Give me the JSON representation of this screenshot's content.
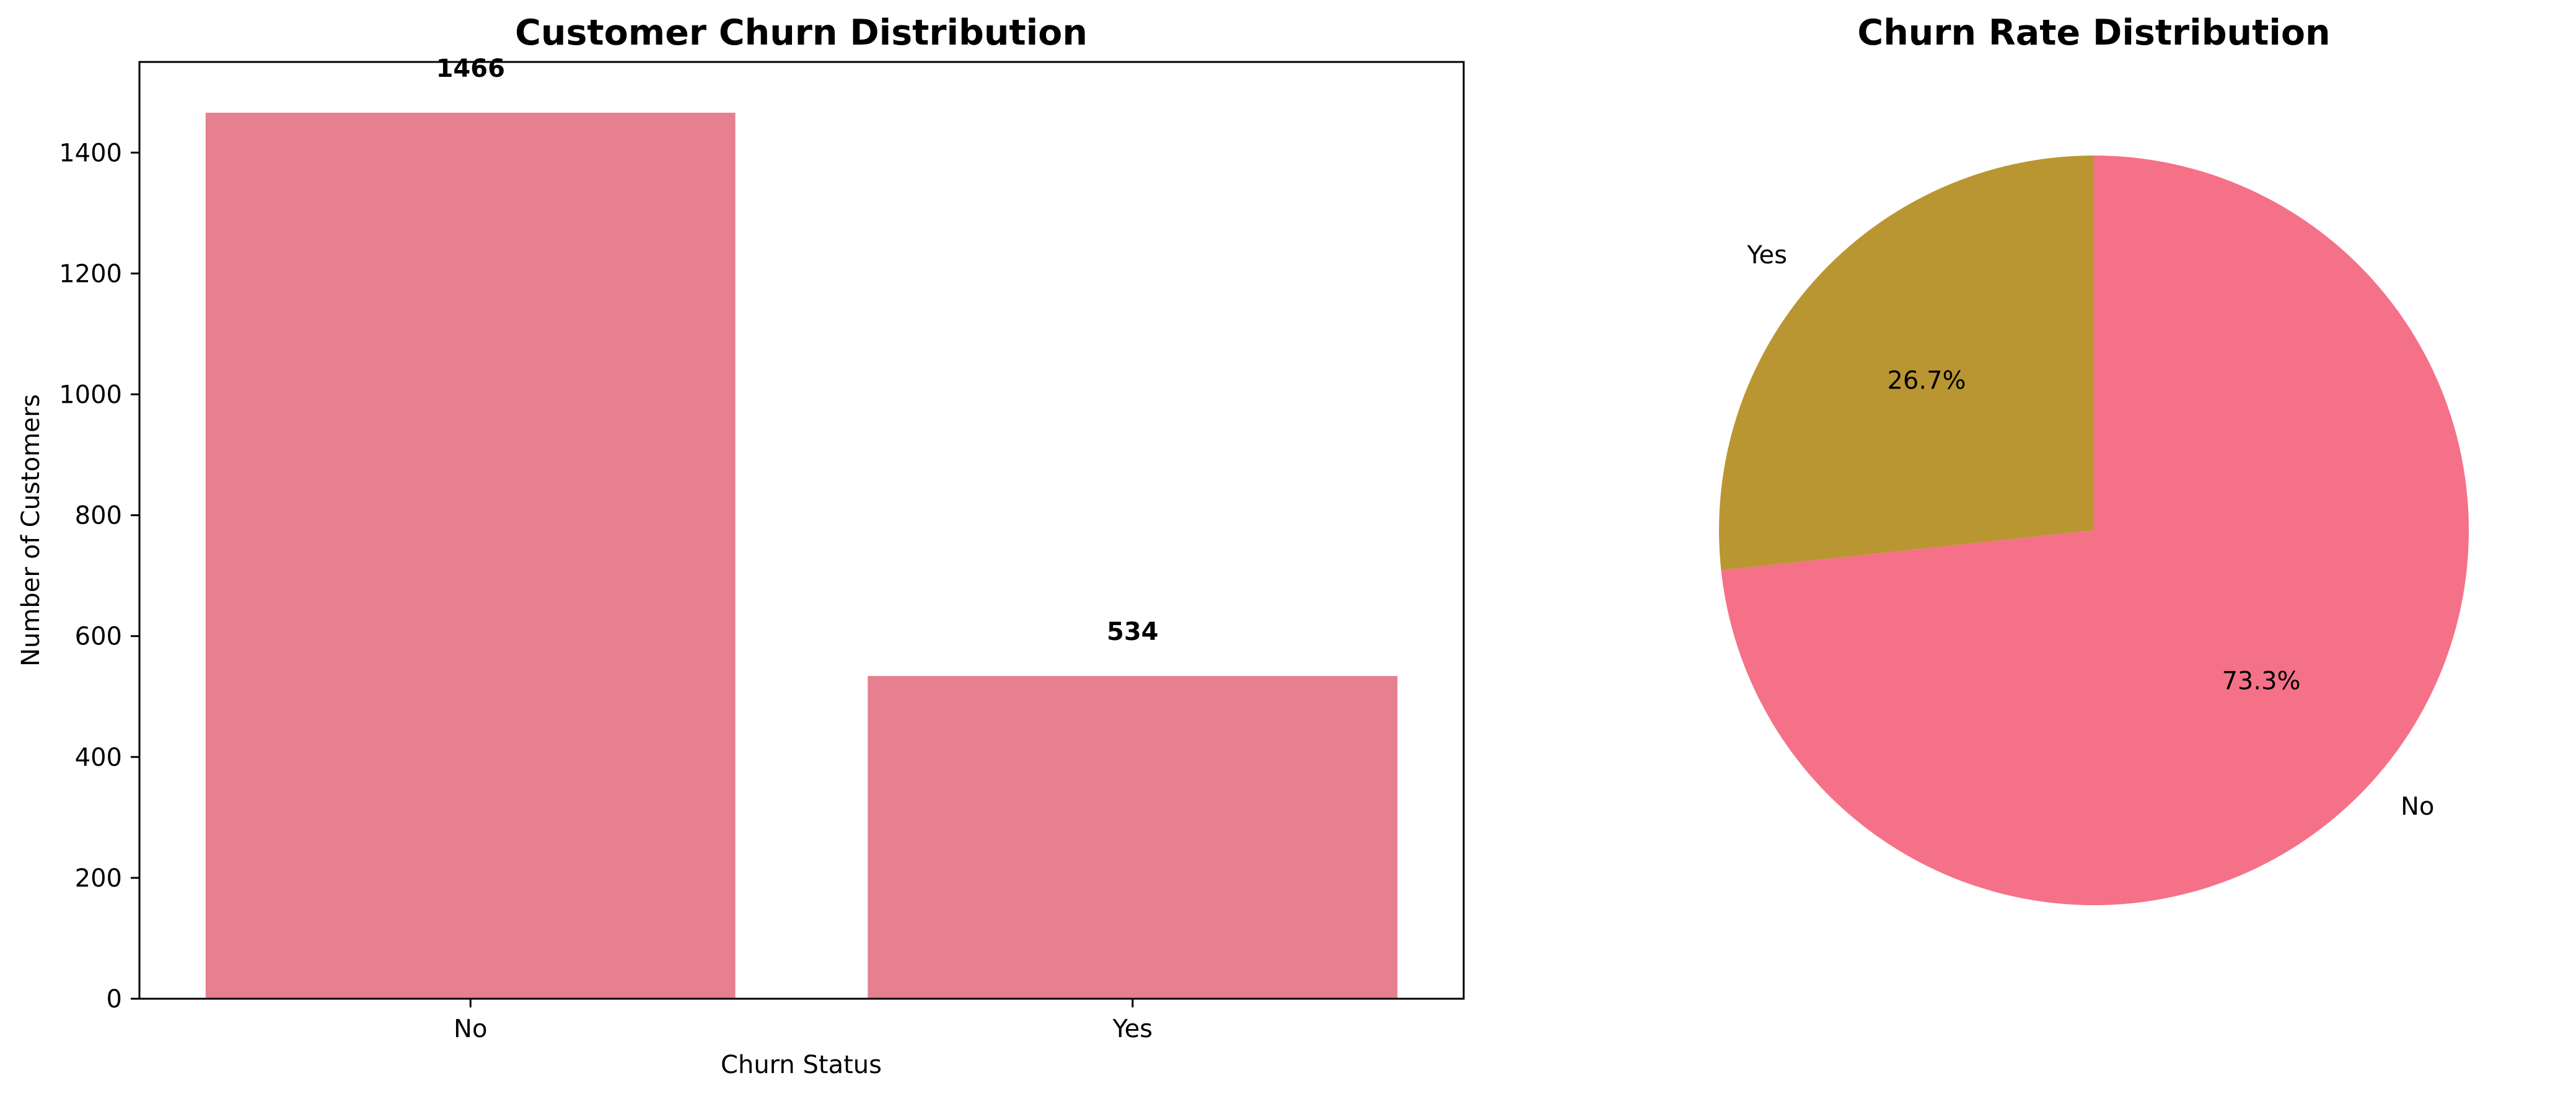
{
  "chart_data": [
    {
      "type": "bar",
      "title": "Customer Churn Distribution",
      "xlabel": "Churn Status",
      "ylabel": "Number of Customers",
      "categories": [
        "No",
        "Yes"
      ],
      "values": [
        1466,
        534
      ],
      "data_labels": [
        "1466",
        "534"
      ],
      "ylim": [
        0,
        1550
      ],
      "yticks": [
        0,
        200,
        400,
        600,
        800,
        1000,
        1200,
        1400
      ],
      "ytick_labels": [
        "0",
        "200",
        "400",
        "600",
        "800",
        "1000",
        "1200",
        "1400"
      ],
      "bar_color": "#e67f90",
      "grid": false,
      "legend": "none"
    },
    {
      "type": "pie",
      "title": "Churn Rate Distribution",
      "labels": [
        "No",
        "Yes"
      ],
      "values": [
        73.3,
        26.7
      ],
      "pct_labels": [
        "73.3%",
        "26.7%"
      ],
      "colors": [
        "#f57188",
        "#ba9632"
      ],
      "start_angle_deg": 90,
      "direction": "clockwise",
      "legend": "none"
    }
  ]
}
